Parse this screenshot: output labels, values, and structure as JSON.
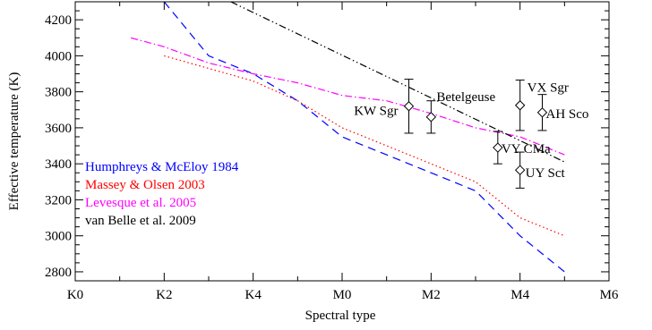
{
  "chart_data": {
    "type": "line",
    "xlabel": "Spectral type",
    "ylabel": "Effective temperature (K)",
    "xlim": [
      0,
      12
    ],
    "ylim": [
      2750,
      4300
    ],
    "x_ticks": [
      {
        "value": 0,
        "label": "K0"
      },
      {
        "value": 2,
        "label": "K2"
      },
      {
        "value": 4,
        "label": "K4"
      },
      {
        "value": 6,
        "label": "M0"
      },
      {
        "value": 8,
        "label": "M2"
      },
      {
        "value": 10,
        "label": "M4"
      },
      {
        "value": 12,
        "label": "M6"
      }
    ],
    "y_ticks": [
      2800,
      3000,
      3200,
      3400,
      3600,
      3800,
      4000,
      4200
    ],
    "grid": false,
    "legend_position": "center-left",
    "series": [
      {
        "name": "Humphreys & McEloy 1984",
        "color": "#0000ff",
        "style": "dashed",
        "x": [
          2.0,
          3.0,
          4.0,
          5.0,
          6.0,
          7.0,
          8.0,
          9.0,
          9.4,
          10.0,
          11.0
        ],
        "y": [
          4300,
          4000,
          3900,
          3750,
          3550,
          3450,
          3350,
          3250,
          3150,
          3000,
          2800
        ]
      },
      {
        "name": "Massey & Olsen 2003",
        "color": "#ff0000",
        "style": "dotted",
        "x": [
          2.0,
          3.0,
          4.0,
          5.0,
          6.0,
          7.0,
          8.0,
          9.0,
          10.0,
          11.0
        ],
        "y": [
          4000,
          3930,
          3860,
          3750,
          3600,
          3500,
          3400,
          3300,
          3100,
          3000
        ]
      },
      {
        "name": "Levesque et al. 2005",
        "color": "#ff00ff",
        "style": "dashdot",
        "x": [
          1.25,
          2.0,
          3.0,
          4.0,
          5.0,
          6.0,
          7.0,
          8.0,
          9.0,
          10.0,
          11.0
        ],
        "y": [
          4100,
          4050,
          3960,
          3900,
          3850,
          3780,
          3750,
          3680,
          3600,
          3550,
          3450
        ]
      },
      {
        "name": "van Belle et al. 2009",
        "color": "#000000",
        "style": "dashdotdot",
        "x": [
          3.5,
          11.0
        ],
        "y": [
          4300,
          3410
        ]
      }
    ],
    "stars": [
      {
        "label": "KW Sgr",
        "x": 7.5,
        "y": 3720,
        "yerr": 150
      },
      {
        "label": "Betelgeuse",
        "x": 8.0,
        "y": 3660,
        "yerr": 90
      },
      {
        "label": "VX Sgr",
        "x": 10.0,
        "y": 3725,
        "yerr": 140
      },
      {
        "label": "AH Sco",
        "x": 10.5,
        "y": 3685,
        "yerr": 100
      },
      {
        "label": "VY CMa",
        "x": 9.5,
        "y": 3490,
        "yerr": 90
      },
      {
        "label": "UY Sct",
        "x": 10.0,
        "y": 3365,
        "yerr": 100
      }
    ]
  }
}
